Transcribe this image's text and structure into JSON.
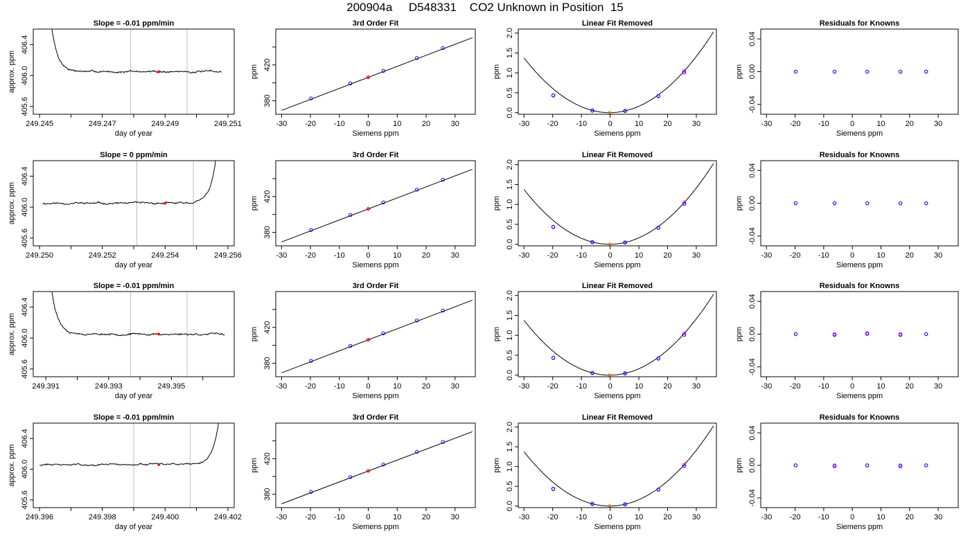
{
  "figure": {
    "title": "200904a     D548331    CO2 Unknown in Position  15"
  },
  "colors": {
    "trace": "#000000",
    "known_points": "#0000ff",
    "known_points_alt": "#ff00ff",
    "unknown_point": "#ff0000",
    "unknown_point_alt": "#ff8000",
    "window_lines": "#bebebe"
  },
  "chart_data": [
    {
      "type": "line",
      "row": 1,
      "title": "Slope =  -0.01  ppm/min",
      "xlabel": "day of year",
      "ylabel": "approx. ppm",
      "xlim": [
        249.2448,
        249.2512
      ],
      "ylim": [
        405.5,
        406.6
      ],
      "xticks": [
        249.245,
        249.246,
        249.247,
        249.248,
        249.249,
        249.25,
        249.251
      ],
      "xtick_labels": [
        "249.245",
        "",
        "249.247",
        "",
        "249.249",
        "",
        "249.251"
      ],
      "yticks": [
        405.6,
        406.0,
        406.4
      ],
      "ytick_labels": [
        "405.6",
        "406.0",
        "406.4"
      ],
      "window": [
        249.2479,
        249.2497
      ],
      "trace": {
        "start": 249.2453,
        "end": 249.2508,
        "level": 406.05,
        "spike": "start",
        "seed": 7
      },
      "marker": {
        "x": 249.2488,
        "y": 406.05
      }
    },
    {
      "type": "scatter",
      "row": 1,
      "title": "3rd Order Fit",
      "xlabel": "Siemens ppm",
      "ylabel": "ppm",
      "xlim": [
        -32,
        37
      ],
      "ylim": [
        365,
        460
      ],
      "xticks": [
        -30,
        -20,
        -10,
        0,
        10,
        20,
        30
      ],
      "xtick_labels": [
        "-30",
        "-20",
        "-10",
        "0",
        "10",
        "20",
        "30"
      ],
      "yticks": [
        380,
        400,
        420,
        440
      ],
      "ytick_labels": [
        "380",
        "",
        "420",
        ""
      ],
      "fit_line": {
        "x": [
          -30,
          36
        ],
        "y": [
          369.3,
          450.4
        ]
      },
      "knowns": {
        "x": [
          -19.8,
          -6.2,
          5.2,
          16.8,
          25.8
        ],
        "y": [
          382.7,
          399.4,
          413.4,
          427.7,
          438.8
        ]
      },
      "unknown": {
        "x": [
          0.0
        ],
        "y": [
          406.3
        ]
      }
    },
    {
      "type": "scatter",
      "row": 1,
      "title": "Linear Fit Removed",
      "xlabel": "Siemens ppm",
      "ylabel": "ppm",
      "xlim": [
        -32,
        37
      ],
      "ylim": [
        -0.04,
        2.1
      ],
      "xticks": [
        -30,
        -20,
        -10,
        0,
        10,
        20,
        30
      ],
      "xtick_labels": [
        "-30",
        "-20",
        "-10",
        "0",
        "10",
        "20",
        "30"
      ],
      "yticks": [
        0.0,
        0.5,
        1.0,
        1.5,
        2.0
      ],
      "ytick_labels": [
        "0.0",
        "0.5",
        "1.0",
        "1.5",
        "2.0"
      ],
      "curve": {
        "x_min": -30,
        "x_max": 36,
        "center": -0.2,
        "coef": 0.00155
      },
      "knowns": {
        "x": [
          -19.8,
          -6.2,
          5.2,
          16.8,
          25.8
        ],
        "y": [
          0.43,
          0.05,
          0.04,
          0.42,
          1.01
        ]
      },
      "knowns_alt": {
        "x": [
          -19.8,
          -6.2,
          5.2,
          16.8,
          25.8
        ],
        "y": [
          0.44,
          0.06,
          0.05,
          0.41,
          1.05
        ]
      },
      "unknown": {
        "x": [
          -0.2
        ],
        "y": [
          0.0
        ]
      }
    },
    {
      "type": "scatter",
      "row": 1,
      "title": "Residuals for Knowns",
      "xlabel": "Siemens ppm",
      "ylabel": "ppm",
      "xlim": [
        -32,
        37
      ],
      "ylim": [
        -0.052,
        0.052
      ],
      "xticks": [
        -30,
        -20,
        -10,
        0,
        10,
        20,
        30
      ],
      "xtick_labels": [
        "-30",
        "-20",
        "-10",
        "0",
        "10",
        "20",
        "30"
      ],
      "yticks": [
        -0.04,
        0.0,
        0.04
      ],
      "ytick_labels": [
        "-0.04",
        "0.00",
        "0.04"
      ],
      "knowns": {
        "x": [
          -19.8,
          -6.2,
          5.2,
          16.8,
          25.8
        ],
        "y": [
          0.0,
          0.0,
          0.0,
          0.0,
          0.0
        ]
      },
      "knowns_alt": {
        "x": [
          -19.8,
          -6.2,
          5.2,
          16.8,
          25.8
        ],
        "y": [
          0.0,
          0.0,
          0.0,
          0.0,
          0.0
        ]
      }
    },
    {
      "type": "line",
      "row": 2,
      "title": "Slope =  0  ppm/min",
      "xlabel": "day of year",
      "ylabel": "approx. ppm",
      "xlim": [
        249.2498,
        249.2562
      ],
      "ylim": [
        405.5,
        406.6
      ],
      "xticks": [
        249.25,
        249.251,
        249.252,
        249.253,
        249.254,
        249.255,
        249.256
      ],
      "xtick_labels": [
        "249.250",
        "",
        "249.252",
        "",
        "249.254",
        "",
        "249.256"
      ],
      "yticks": [
        405.6,
        406.0,
        406.4
      ],
      "ytick_labels": [
        "405.6",
        "406.0",
        "406.4"
      ],
      "window": [
        249.2531,
        249.2549
      ],
      "trace": {
        "start": 249.2501,
        "end": 249.2557,
        "level": 406.05,
        "spike": "end",
        "seed": 11
      },
      "marker": {
        "x": 249.254,
        "y": 406.05
      }
    },
    {
      "type": "scatter",
      "row": 2,
      "title": "3rd Order Fit",
      "xlabel": "Siemens ppm",
      "ylabel": "ppm",
      "xlim": [
        -32,
        37
      ],
      "ylim": [
        365,
        460
      ],
      "xticks": [
        -30,
        -20,
        -10,
        0,
        10,
        20,
        30
      ],
      "xtick_labels": [
        "-30",
        "-20",
        "-10",
        "0",
        "10",
        "20",
        "30"
      ],
      "yticks": [
        380,
        400,
        420,
        440
      ],
      "ytick_labels": [
        "380",
        "",
        "420",
        ""
      ],
      "fit_line": {
        "x": [
          -30,
          36
        ],
        "y": [
          369.3,
          450.4
        ]
      },
      "knowns": {
        "x": [
          -19.8,
          -6.2,
          5.2,
          16.8,
          25.8
        ],
        "y": [
          382.7,
          399.4,
          413.4,
          427.7,
          438.8
        ]
      },
      "unknown": {
        "x": [
          0.0
        ],
        "y": [
          406.3
        ]
      }
    },
    {
      "type": "scatter",
      "row": 2,
      "title": "Linear Fit Removed",
      "xlabel": "Siemens ppm",
      "ylabel": "ppm",
      "xlim": [
        -32,
        37
      ],
      "ylim": [
        -0.04,
        2.1
      ],
      "xticks": [
        -30,
        -20,
        -10,
        0,
        10,
        20,
        30
      ],
      "xtick_labels": [
        "-30",
        "-20",
        "-10",
        "0",
        "10",
        "20",
        "30"
      ],
      "yticks": [
        0.0,
        0.5,
        1.0,
        1.5,
        2.0
      ],
      "ytick_labels": [
        "0.0",
        "0.5",
        "1.0",
        "1.5",
        "2.0"
      ],
      "curve": {
        "x_min": -30,
        "x_max": 36,
        "center": -0.2,
        "coef": 0.00155
      },
      "knowns": {
        "x": [
          -19.8,
          -6.2,
          5.2,
          16.8,
          25.8
        ],
        "y": [
          0.43,
          0.05,
          0.04,
          0.42,
          1.01
        ]
      },
      "knowns_alt": {
        "x": [
          -19.8,
          -6.2,
          5.2,
          16.8,
          25.8
        ],
        "y": [
          0.44,
          0.06,
          0.05,
          0.41,
          1.05
        ]
      },
      "unknown": {
        "x": [
          -0.2
        ],
        "y": [
          0.0
        ]
      }
    },
    {
      "type": "scatter",
      "row": 2,
      "title": "Residuals for Knowns",
      "xlabel": "Siemens ppm",
      "ylabel": "ppm",
      "xlim": [
        -32,
        37
      ],
      "ylim": [
        -0.052,
        0.052
      ],
      "xticks": [
        -30,
        -20,
        -10,
        0,
        10,
        20,
        30
      ],
      "xtick_labels": [
        "-30",
        "-20",
        "-10",
        "0",
        "10",
        "20",
        "30"
      ],
      "yticks": [
        -0.04,
        0.0,
        0.04
      ],
      "ytick_labels": [
        "-0.04",
        "0.00",
        "0.04"
      ],
      "knowns": {
        "x": [
          -19.8,
          -6.2,
          5.2,
          16.8,
          25.8
        ],
        "y": [
          0.0,
          0.0,
          0.0,
          0.0,
          0.0
        ]
      },
      "knowns_alt": {
        "x": [
          -19.8,
          -6.2,
          5.2,
          16.8,
          25.8
        ],
        "y": [
          0.0,
          0.0,
          0.0,
          0.0,
          0.0
        ]
      }
    },
    {
      "type": "line",
      "row": 3,
      "title": "Slope =  -0.01  ppm/min",
      "xlabel": "day of year",
      "ylabel": "approx. ppm",
      "xlim": [
        249.3906,
        249.397
      ],
      "ylim": [
        405.5,
        406.6
      ],
      "xticks": [
        249.391,
        249.392,
        249.393,
        249.394,
        249.395,
        249.396
      ],
      "xtick_labels": [
        "249.391",
        "",
        "249.393",
        "",
        "249.395",
        ""
      ],
      "yticks": [
        405.6,
        406.0,
        406.4
      ],
      "ytick_labels": [
        "405.6",
        "406.0",
        "406.4"
      ],
      "window": [
        249.3937,
        249.3955
      ],
      "trace": {
        "start": 249.3911,
        "end": 249.3967,
        "level": 406.05,
        "spike": "start",
        "seed": 23
      },
      "marker": {
        "x": 249.3946,
        "y": 406.05
      }
    },
    {
      "type": "scatter",
      "row": 3,
      "title": "3rd Order Fit",
      "xlabel": "Siemens ppm",
      "ylabel": "ppm",
      "xlim": [
        -32,
        37
      ],
      "ylim": [
        365,
        460
      ],
      "xticks": [
        -30,
        -20,
        -10,
        0,
        10,
        20,
        30
      ],
      "xtick_labels": [
        "-30",
        "-20",
        "-10",
        "0",
        "10",
        "20",
        "30"
      ],
      "yticks": [
        380,
        400,
        420,
        440
      ],
      "ytick_labels": [
        "380",
        "",
        "420",
        ""
      ],
      "fit_line": {
        "x": [
          -30,
          36
        ],
        "y": [
          369.3,
          450.4
        ]
      },
      "knowns": {
        "x": [
          -19.8,
          -6.2,
          5.2,
          16.8,
          25.8
        ],
        "y": [
          382.7,
          399.4,
          413.4,
          427.7,
          438.8
        ]
      },
      "unknown": {
        "x": [
          0.0
        ],
        "y": [
          406.3
        ]
      }
    },
    {
      "type": "scatter",
      "row": 3,
      "title": "Linear Fit Removed",
      "xlabel": "Siemens ppm",
      "ylabel": "ppm",
      "xlim": [
        -32,
        37
      ],
      "ylim": [
        -0.04,
        2.1
      ],
      "xticks": [
        -30,
        -20,
        -10,
        0,
        10,
        20,
        30
      ],
      "xtick_labels": [
        "-30",
        "-20",
        "-10",
        "0",
        "10",
        "20",
        "30"
      ],
      "yticks": [
        0.0,
        0.5,
        1.0,
        1.5,
        2.0
      ],
      "ytick_labels": [
        "0.0",
        "0.5",
        "1.0",
        "1.5",
        "2.0"
      ],
      "curve": {
        "x_min": -30,
        "x_max": 36,
        "center": -0.2,
        "coef": 0.00155
      },
      "knowns": {
        "x": [
          -19.8,
          -6.2,
          5.2,
          16.8,
          25.8
        ],
        "y": [
          0.43,
          0.05,
          0.04,
          0.42,
          1.01
        ]
      },
      "knowns_alt": {
        "x": [
          -19.8,
          -6.2,
          5.2,
          16.8,
          25.8
        ],
        "y": [
          0.44,
          0.06,
          0.05,
          0.41,
          1.05
        ]
      },
      "unknown": {
        "x": [
          -0.2
        ],
        "y": [
          0.0
        ]
      }
    },
    {
      "type": "scatter",
      "row": 3,
      "title": "Residuals for Knowns",
      "xlabel": "Siemens ppm",
      "ylabel": "ppm",
      "xlim": [
        -32,
        37
      ],
      "ylim": [
        -0.052,
        0.052
      ],
      "xticks": [
        -30,
        -20,
        -10,
        0,
        10,
        20,
        30
      ],
      "xtick_labels": [
        "-30",
        "-20",
        "-10",
        "0",
        "10",
        "20",
        "30"
      ],
      "yticks": [
        -0.04,
        0.0,
        0.04
      ],
      "ytick_labels": [
        "-0.04",
        "0.00",
        "0.04"
      ],
      "knowns": {
        "x": [
          -19.8,
          -6.2,
          5.2,
          16.8,
          25.8
        ],
        "y": [
          0.0,
          -0.001,
          0.001,
          -0.001,
          0.0
        ]
      },
      "knowns_alt": {
        "x": [
          -19.8,
          -6.2,
          5.2,
          16.8,
          25.8
        ],
        "y": [
          0.0,
          0.0,
          0.0,
          0.0,
          0.0
        ]
      }
    },
    {
      "type": "line",
      "row": 4,
      "title": "Slope =  -0.01  ppm/min",
      "xlabel": "day of year",
      "ylabel": "approx. ppm",
      "xlim": [
        249.3958,
        249.4022
      ],
      "ylim": [
        405.5,
        406.6
      ],
      "xticks": [
        249.396,
        249.397,
        249.398,
        249.399,
        249.4,
        249.401,
        249.402
      ],
      "xtick_labels": [
        "249.396",
        "",
        "249.398",
        "",
        "249.400",
        "",
        "249.402"
      ],
      "yticks": [
        405.6,
        406.0,
        406.4
      ],
      "ytick_labels": [
        "405.6",
        "406.0",
        "406.4"
      ],
      "window": [
        249.399,
        249.4008
      ],
      "trace": {
        "start": 249.396,
        "end": 249.4018,
        "level": 406.06,
        "spike": "end",
        "seed": 31
      },
      "marker": {
        "x": 249.3998,
        "y": 406.06
      }
    },
    {
      "type": "scatter",
      "row": 4,
      "title": "3rd Order Fit",
      "xlabel": "Siemens ppm",
      "ylabel": "ppm",
      "xlim": [
        -32,
        37
      ],
      "ylim": [
        365,
        460
      ],
      "xticks": [
        -30,
        -20,
        -10,
        0,
        10,
        20,
        30
      ],
      "xtick_labels": [
        "-30",
        "-20",
        "-10",
        "0",
        "10",
        "20",
        "30"
      ],
      "yticks": [
        380,
        400,
        420,
        440
      ],
      "ytick_labels": [
        "380",
        "",
        "420",
        ""
      ],
      "fit_line": {
        "x": [
          -30,
          36
        ],
        "y": [
          369.3,
          450.4
        ]
      },
      "knowns": {
        "x": [
          -19.8,
          -6.2,
          5.2,
          16.8,
          25.8
        ],
        "y": [
          382.7,
          399.4,
          413.4,
          427.7,
          438.8
        ]
      },
      "unknown": {
        "x": [
          0.0
        ],
        "y": [
          406.3
        ]
      }
    },
    {
      "type": "scatter",
      "row": 4,
      "title": "Linear Fit Removed",
      "xlabel": "Siemens ppm",
      "ylabel": "ppm",
      "xlim": [
        -32,
        37
      ],
      "ylim": [
        -0.04,
        2.1
      ],
      "xticks": [
        -30,
        -20,
        -10,
        0,
        10,
        20,
        30
      ],
      "xtick_labels": [
        "-30",
        "-20",
        "-10",
        "0",
        "10",
        "20",
        "30"
      ],
      "yticks": [
        0.0,
        0.5,
        1.0,
        1.5,
        2.0
      ],
      "ytick_labels": [
        "0.0",
        "0.5",
        "1.0",
        "1.5",
        "2.0"
      ],
      "curve": {
        "x_min": -30,
        "x_max": 36,
        "center": -0.2,
        "coef": 0.00155
      },
      "knowns": {
        "x": [
          -19.8,
          -6.2,
          5.2,
          16.8,
          25.8
        ],
        "y": [
          0.43,
          0.05,
          0.04,
          0.42,
          1.01
        ]
      },
      "knowns_alt": {
        "x": [
          -19.8,
          -6.2,
          5.2,
          16.8,
          25.8
        ],
        "y": [
          0.44,
          0.06,
          0.05,
          0.41,
          1.05
        ]
      },
      "unknown": {
        "x": [
          -0.2
        ],
        "y": [
          0.0
        ]
      }
    },
    {
      "type": "scatter",
      "row": 4,
      "title": "Residuals for Knowns",
      "xlabel": "Siemens ppm",
      "ylabel": "ppm",
      "xlim": [
        -32,
        37
      ],
      "ylim": [
        -0.052,
        0.052
      ],
      "xticks": [
        -30,
        -20,
        -10,
        0,
        10,
        20,
        30
      ],
      "xtick_labels": [
        "-30",
        "-20",
        "-10",
        "0",
        "10",
        "20",
        "30"
      ],
      "yticks": [
        -0.04,
        0.0,
        0.04
      ],
      "ytick_labels": [
        "-0.04",
        "0.00",
        "0.04"
      ],
      "knowns": {
        "x": [
          -19.8,
          -6.2,
          5.2,
          16.8,
          25.8
        ],
        "y": [
          0.0,
          -0.001,
          0.0,
          -0.001,
          0.0
        ]
      },
      "knowns_alt": {
        "x": [
          -19.8,
          -6.2,
          5.2,
          16.8,
          25.8
        ],
        "y": [
          0.0,
          0.0,
          0.0,
          0.0,
          0.0
        ]
      }
    }
  ]
}
